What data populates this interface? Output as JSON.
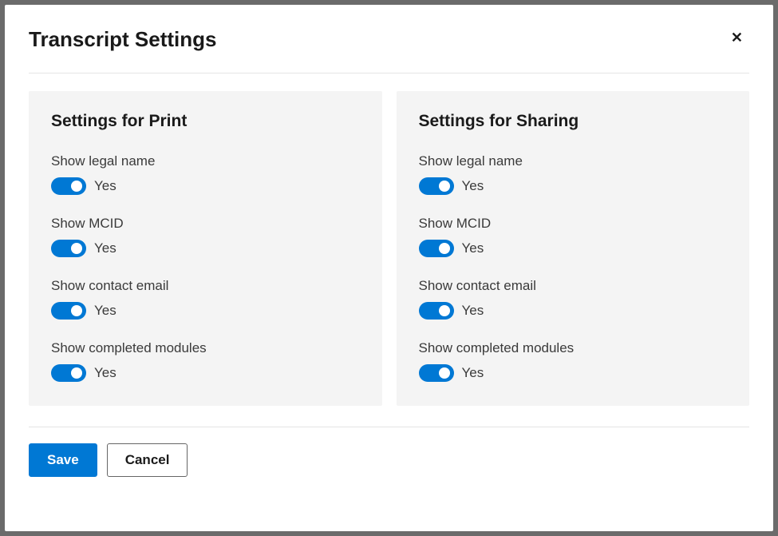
{
  "modal": {
    "title": "Transcript Settings",
    "close_aria": "Close"
  },
  "colors": {
    "primary": "#0078d4",
    "panel_bg": "#f4f4f4",
    "modal_bg": "#ffffff",
    "text": "#1a1a1a",
    "label_text": "#3a3a3a",
    "divider": "#e5e5e5",
    "border": "#666666"
  },
  "panels": {
    "print": {
      "title": "Settings for Print",
      "settings": {
        "legal_name": {
          "label": "Show legal name",
          "value": "Yes",
          "on": true
        },
        "mcid": {
          "label": "Show MCID",
          "value": "Yes",
          "on": true
        },
        "contact_email": {
          "label": "Show contact email",
          "value": "Yes",
          "on": true
        },
        "completed_modules": {
          "label": "Show completed modules",
          "value": "Yes",
          "on": true
        }
      }
    },
    "sharing": {
      "title": "Settings for Sharing",
      "settings": {
        "legal_name": {
          "label": "Show legal name",
          "value": "Yes",
          "on": true
        },
        "mcid": {
          "label": "Show MCID",
          "value": "Yes",
          "on": true
        },
        "contact_email": {
          "label": "Show contact email",
          "value": "Yes",
          "on": true
        },
        "completed_modules": {
          "label": "Show completed modules",
          "value": "Yes",
          "on": true
        }
      }
    }
  },
  "footer": {
    "save": "Save",
    "cancel": "Cancel"
  }
}
